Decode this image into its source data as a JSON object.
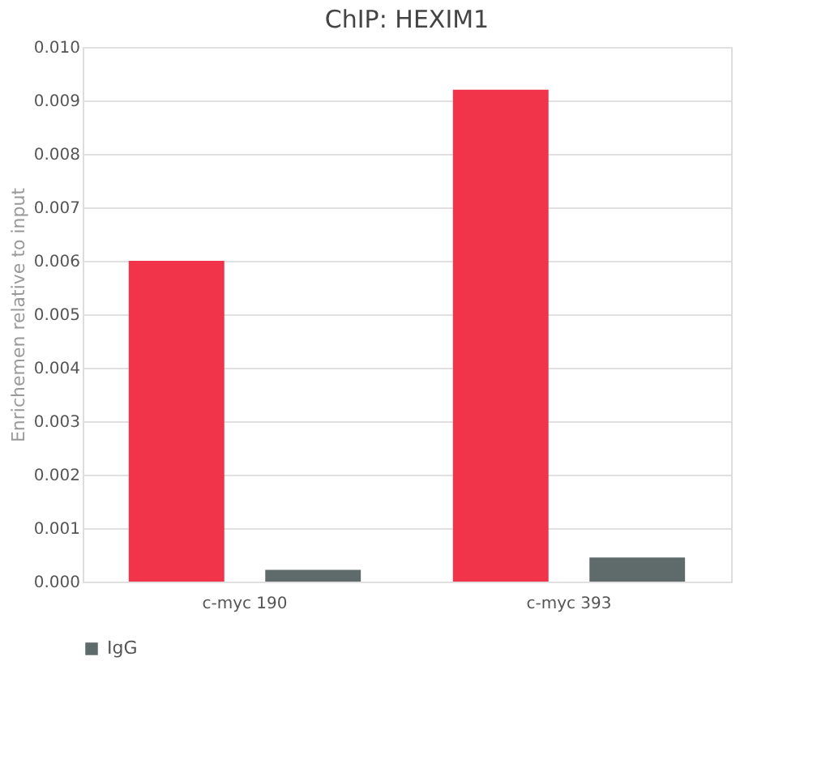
{
  "chart_data": {
    "type": "bar",
    "title": "ChIP: HEXIM1",
    "ylabel": "Enrichemen relative to input",
    "categories": [
      "c-myc 190",
      "c-myc 393"
    ],
    "series": [
      {
        "color": "#f2344b",
        "values": [
          0.006,
          0.0092
        ]
      },
      {
        "name": "IgG",
        "color": "#5f6b6b",
        "values": [
          0.00022,
          0.00045
        ]
      }
    ],
    "ylim": [
      0,
      0.01
    ],
    "yticks": [
      {
        "value": 0,
        "label": "0.000"
      },
      {
        "value": 0.001,
        "label": "0.001"
      },
      {
        "value": 0.002,
        "label": "0.002"
      },
      {
        "value": 0.003,
        "label": "0.003"
      },
      {
        "value": 0.004,
        "label": "0.004"
      },
      {
        "value": 0.005,
        "label": "0.005"
      },
      {
        "value": 0.006,
        "label": "0.006"
      },
      {
        "value": 0.007,
        "label": "0.007"
      },
      {
        "value": 0.008,
        "label": "0.008"
      },
      {
        "value": 0.009,
        "label": "0.009"
      },
      {
        "value": 0.01,
        "label": "0.010"
      }
    ],
    "grid": "y",
    "legend": "bottom"
  }
}
